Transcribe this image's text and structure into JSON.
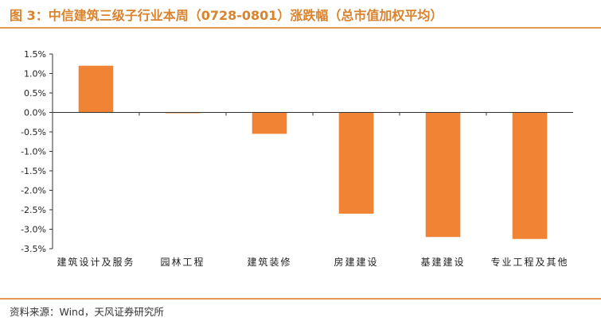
{
  "title": "图 3：中信建筑三级子行业本周（0728-0801）涨跌幅（总市值加权平均）",
  "source": "资料来源：Wind，天风证券研究所",
  "colors": {
    "bar": "#f08434",
    "accent": "#d9832e",
    "rule": "#e39a55",
    "axis": "#333333"
  },
  "chart_data": {
    "type": "bar",
    "categories": [
      "建筑设计及服务",
      "园林工程",
      "建筑装修",
      "房建建设",
      "基建建设",
      "专业工程及其他"
    ],
    "values": [
      1.2,
      -0.02,
      -0.55,
      -2.6,
      -3.2,
      -3.25
    ],
    "ylim": [
      -3.5,
      1.5
    ],
    "yticks": [
      1.5,
      1.0,
      0.5,
      0.0,
      -0.5,
      -1.0,
      -1.5,
      -2.0,
      -2.5,
      -3.0,
      -3.5
    ],
    "ytick_labels": [
      "1.5%",
      "1.0%",
      "0.5%",
      "0.0%",
      "-0.5%",
      "-1.0%",
      "-1.5%",
      "-2.0%",
      "-2.5%",
      "-3.0%",
      "-3.5%"
    ],
    "xlabel": "",
    "ylabel": "",
    "grid": false,
    "legend": "none"
  }
}
